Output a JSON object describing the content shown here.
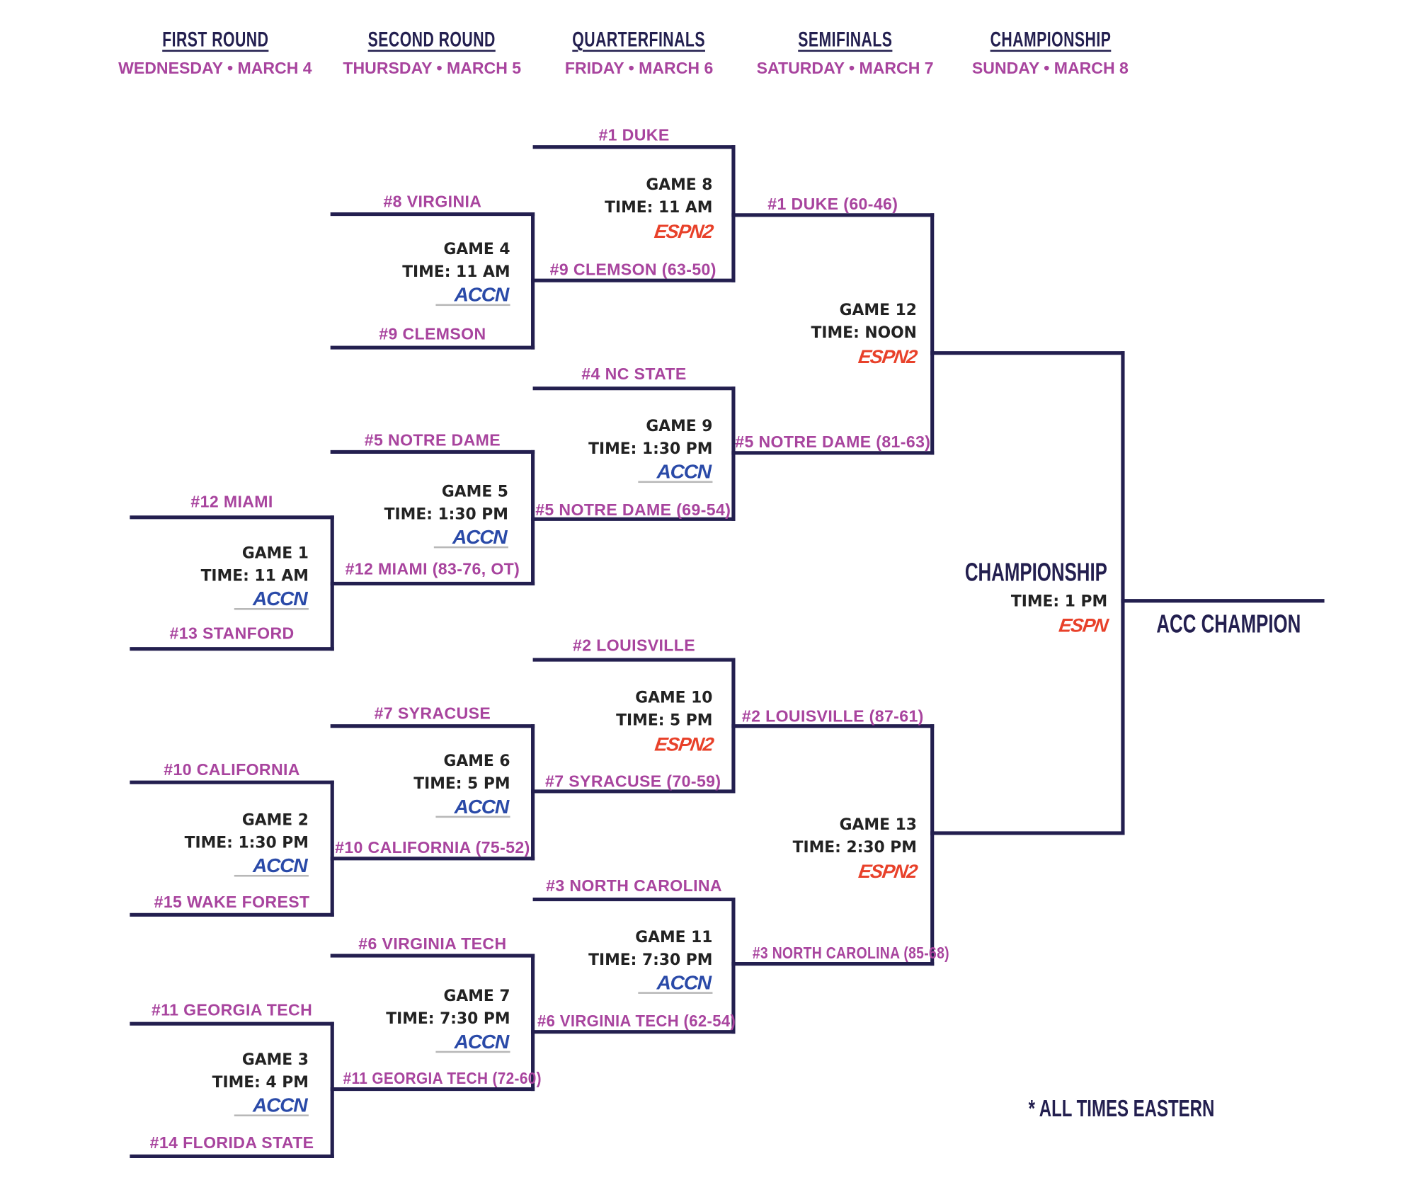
{
  "colors": {
    "line": "#231f4f",
    "team": "#a8449e",
    "espn": "#e8412a",
    "accn": "#2a4aa8"
  },
  "rounds": [
    {
      "title": "FIRST ROUND",
      "date": "WEDNESDAY • MARCH 4"
    },
    {
      "title": "SECOND ROUND",
      "date": "THURSDAY • MARCH 5"
    },
    {
      "title": "QUARTERFINALS",
      "date": "FRIDAY • MARCH 6"
    },
    {
      "title": "SEMIFINALS",
      "date": "SATURDAY • MARCH 7"
    },
    {
      "title": "CHAMPIONSHIP",
      "date": "SUNDAY • MARCH 8"
    }
  ],
  "teams": [
    "#1 DUKE",
    "#8 VIRGINIA",
    "#9 CLEMSON (63-50)",
    "#1 DUKE (60-46)",
    "#9 CLEMSON",
    "#4 NC STATE",
    "#5 NOTRE DAME",
    "#5 NOTRE DAME (81-63)",
    "#12 MIAMI",
    "#5 NOTRE DAME (69-54)",
    "#12 MIAMI (83-76, OT)",
    "#13 STANFORD",
    "#2 LOUISVILLE",
    "#7 SYRACUSE",
    "#2 LOUISVILLE (87-61)",
    "#10 CALIFORNIA",
    "#7 SYRACUSE (70-59)",
    "#10 CALIFORNIA (75-52)",
    "#15 WAKE FOREST",
    "#3 NORTH CAROLINA",
    "#3 NORTH CAROLINA (85-68)",
    "#6 VIRGINIA TECH",
    "#11 GEORGIA TECH",
    "#6 VIRGINIA TECH (62-54)",
    "#11 GEORGIA TECH (72-60)",
    "#14 FLORIDA STATE"
  ],
  "games": [
    {
      "game": "GAME 1",
      "time": "TIME: 11 AM",
      "network": "ACCN",
      "network_icon": "accn-logo"
    },
    {
      "game": "GAME 2",
      "time": "TIME: 1:30 PM",
      "network": "ACCN",
      "network_icon": "accn-logo"
    },
    {
      "game": "GAME 3",
      "time": "TIME: 4 PM",
      "network": "ACCN",
      "network_icon": "accn-logo"
    },
    {
      "game": "GAME 4",
      "time": "TIME: 11 AM",
      "network": "ACCN",
      "network_icon": "accn-logo"
    },
    {
      "game": "GAME 5",
      "time": "TIME: 1:30 PM",
      "network": "ACCN",
      "network_icon": "accn-logo"
    },
    {
      "game": "GAME 6",
      "time": "TIME: 5 PM",
      "network": "ACCN",
      "network_icon": "accn-logo"
    },
    {
      "game": "GAME 7",
      "time": "TIME: 7:30 PM",
      "network": "ACCN",
      "network_icon": "accn-logo"
    },
    {
      "game": "GAME 8",
      "time": "TIME: 11 AM",
      "network": "ESPN2",
      "network_icon": "espn2-logo"
    },
    {
      "game": "GAME 9",
      "time": "TIME: 1:30 PM",
      "network": "ACCN",
      "network_icon": "accn-logo"
    },
    {
      "game": "GAME 10",
      "time": "TIME: 5 PM",
      "network": "ESPN2",
      "network_icon": "espn2-logo"
    },
    {
      "game": "GAME 11",
      "time": "TIME: 7:30 PM",
      "network": "ACCN",
      "network_icon": "accn-logo"
    },
    {
      "game": "GAME 12",
      "time": "TIME: NOON",
      "network": "ESPN2",
      "network_icon": "espn2-logo"
    },
    {
      "game": "GAME 13",
      "time": "TIME: 2:30 PM",
      "network": "ESPN2",
      "network_icon": "espn2-logo"
    },
    {
      "game": "CHAMPIONSHIP",
      "time": "TIME: 1 PM",
      "network": "ESPN",
      "network_icon": "espn-logo"
    }
  ],
  "champion_label": "ACC CHAMPION",
  "footnote": "* ALL TIMES EASTERN"
}
